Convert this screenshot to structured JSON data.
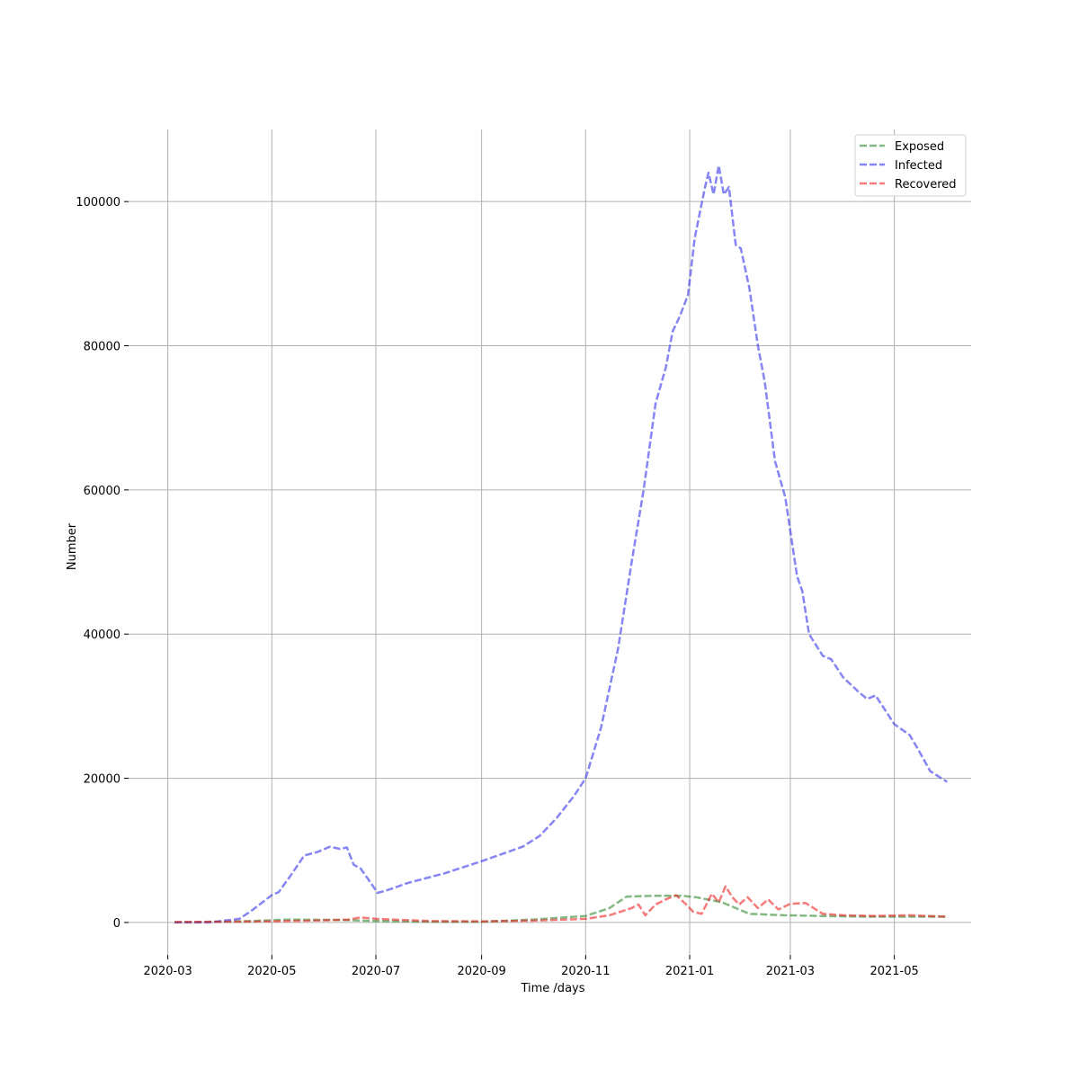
{
  "chart_data": {
    "type": "line",
    "title": "",
    "xlabel": "Time /days",
    "ylabel": "Number",
    "x_range": [
      "2020-02-07",
      "2021-06-15"
    ],
    "ylim": [
      -4500,
      110000
    ],
    "x_ticks": [
      "2020-03",
      "2020-05",
      "2020-07",
      "2020-09",
      "2020-11",
      "2021-01",
      "2021-03",
      "2021-05"
    ],
    "y_ticks": [
      0,
      20000,
      40000,
      60000,
      80000,
      100000
    ],
    "grid": true,
    "legend_position": "top-right",
    "line_style": "dashed",
    "series": [
      {
        "name": "Exposed",
        "color": "#2e8b2e",
        "points": [
          [
            "2020-03-05",
            50
          ],
          [
            "2020-04-01",
            100
          ],
          [
            "2020-04-20",
            200
          ],
          [
            "2020-05-10",
            400
          ],
          [
            "2020-06-10",
            350
          ],
          [
            "2020-07-01",
            200
          ],
          [
            "2020-08-01",
            100
          ],
          [
            "2020-09-01",
            100
          ],
          [
            "2020-10-01",
            400
          ],
          [
            "2020-11-01",
            900
          ],
          [
            "2020-11-15",
            2000
          ],
          [
            "2020-11-25",
            3600
          ],
          [
            "2020-12-10",
            3700
          ],
          [
            "2020-12-28",
            3700
          ],
          [
            "2021-01-05",
            3500
          ],
          [
            "2021-01-20",
            2800
          ],
          [
            "2021-01-28",
            2000
          ],
          [
            "2021-02-05",
            1200
          ],
          [
            "2021-02-25",
            1000
          ],
          [
            "2021-03-20",
            900
          ],
          [
            "2021-04-15",
            800
          ],
          [
            "2021-06-01",
            800
          ]
        ]
      },
      {
        "name": "Infected",
        "color": "#3333ee",
        "points": [
          [
            "2020-03-05",
            0
          ],
          [
            "2020-03-25",
            0
          ],
          [
            "2020-04-12",
            500
          ],
          [
            "2020-04-20",
            1800
          ],
          [
            "2020-05-01",
            3800
          ],
          [
            "2020-05-05",
            4200
          ],
          [
            "2020-05-12",
            6500
          ],
          [
            "2020-05-20",
            9300
          ],
          [
            "2020-05-28",
            9800
          ],
          [
            "2020-06-04",
            10500
          ],
          [
            "2020-06-10",
            10200
          ],
          [
            "2020-06-14",
            10400
          ],
          [
            "2020-06-18",
            8000
          ],
          [
            "2020-06-22",
            7500
          ],
          [
            "2020-06-28",
            5500
          ],
          [
            "2020-07-02",
            4100
          ],
          [
            "2020-07-08",
            4500
          ],
          [
            "2020-07-20",
            5500
          ],
          [
            "2020-08-10",
            6800
          ],
          [
            "2020-09-01",
            8500
          ],
          [
            "2020-09-25",
            10500
          ],
          [
            "2020-10-05",
            12000
          ],
          [
            "2020-10-15",
            14500
          ],
          [
            "2020-10-25",
            17500
          ],
          [
            "2020-11-01",
            20000
          ],
          [
            "2020-11-10",
            27000
          ],
          [
            "2020-11-20",
            38000
          ],
          [
            "2020-11-28",
            50000
          ],
          [
            "2020-12-05",
            60000
          ],
          [
            "2020-12-12",
            72000
          ],
          [
            "2020-12-18",
            77000
          ],
          [
            "2020-12-22",
            82000
          ],
          [
            "2020-12-26",
            84000
          ],
          [
            "2020-12-31",
            87000
          ],
          [
            "2021-01-04",
            95000
          ],
          [
            "2021-01-10",
            102000
          ],
          [
            "2021-01-12",
            104000
          ],
          [
            "2021-01-15",
            101000
          ],
          [
            "2021-01-18",
            105000
          ],
          [
            "2021-01-21",
            101000
          ],
          [
            "2021-01-24",
            102000
          ],
          [
            "2021-01-28",
            94000
          ],
          [
            "2021-01-31",
            93500
          ],
          [
            "2021-02-05",
            88000
          ],
          [
            "2021-02-10",
            80000
          ],
          [
            "2021-02-14",
            75000
          ],
          [
            "2021-02-20",
            64000
          ],
          [
            "2021-02-26",
            59000
          ],
          [
            "2021-03-05",
            48000
          ],
          [
            "2021-03-08",
            46000
          ],
          [
            "2021-03-12",
            40000
          ],
          [
            "2021-03-20",
            37000
          ],
          [
            "2021-03-25",
            36500
          ],
          [
            "2021-04-01",
            34000
          ],
          [
            "2021-04-10",
            32000
          ],
          [
            "2021-04-15",
            31000
          ],
          [
            "2021-04-20",
            31500
          ],
          [
            "2021-05-01",
            27500
          ],
          [
            "2021-05-10",
            26000
          ],
          [
            "2021-05-15",
            24000
          ],
          [
            "2021-05-22",
            21000
          ],
          [
            "2021-06-01",
            19500
          ]
        ]
      },
      {
        "name": "Recovered",
        "color": "#ee2222",
        "points": [
          [
            "2020-03-05",
            50
          ],
          [
            "2020-04-01",
            100
          ],
          [
            "2020-05-01",
            150
          ],
          [
            "2020-06-01",
            300
          ],
          [
            "2020-06-15",
            400
          ],
          [
            "2020-06-22",
            700
          ],
          [
            "2020-07-01",
            500
          ],
          [
            "2020-08-01",
            200
          ],
          [
            "2020-09-01",
            150
          ],
          [
            "2020-10-01",
            250
          ],
          [
            "2020-11-01",
            500
          ],
          [
            "2020-11-15",
            1000
          ],
          [
            "2020-11-28",
            2000
          ],
          [
            "2020-12-02",
            2500
          ],
          [
            "2020-12-06",
            1000
          ],
          [
            "2020-12-12",
            2500
          ],
          [
            "2020-12-18",
            3200
          ],
          [
            "2020-12-24",
            3800
          ],
          [
            "2020-12-30",
            2500
          ],
          [
            "2021-01-03",
            1500
          ],
          [
            "2021-01-08",
            1200
          ],
          [
            "2021-01-14",
            4000
          ],
          [
            "2021-01-18",
            2800
          ],
          [
            "2021-01-22",
            5000
          ],
          [
            "2021-01-26",
            3500
          ],
          [
            "2021-01-30",
            2500
          ],
          [
            "2021-02-04",
            3500
          ],
          [
            "2021-02-10",
            2000
          ],
          [
            "2021-02-16",
            3200
          ],
          [
            "2021-02-22",
            1800
          ],
          [
            "2021-03-01",
            2600
          ],
          [
            "2021-03-10",
            2700
          ],
          [
            "2021-03-20",
            1200
          ],
          [
            "2021-04-01",
            1000
          ],
          [
            "2021-04-20",
            900
          ],
          [
            "2021-05-10",
            1000
          ],
          [
            "2021-06-01",
            800
          ]
        ]
      }
    ]
  }
}
